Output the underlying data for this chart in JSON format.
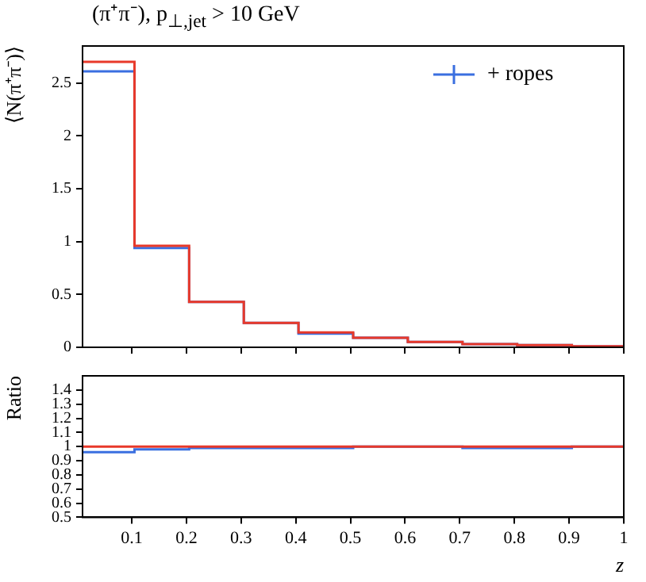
{
  "chart_data": [
    {
      "type": "histogram",
      "title": "(π⁺π⁻), p$_{⊥,jet}$ > 10 GeV",
      "ylabel": "⟨N(π⁺π⁻)⟩",
      "bins": [
        0.01,
        0.105,
        0.205,
        0.305,
        0.405,
        0.505,
        0.605,
        0.705,
        0.805,
        0.905,
        1.0
      ],
      "series": [
        {
          "color": "#e8392a",
          "values": [
            2.7,
            0.96,
            0.43,
            0.23,
            0.14,
            0.09,
            0.05,
            0.03,
            0.02,
            0.01
          ]
        },
        {
          "name": "+ ropes",
          "color": "#3a6fe0",
          "values": [
            2.61,
            0.94,
            0.43,
            0.23,
            0.13,
            0.09,
            0.05,
            0.03,
            0.02,
            0.01
          ]
        }
      ],
      "xlim": [
        0.01,
        1
      ],
      "xticks": [
        0.1,
        0.2,
        0.3,
        0.4,
        0.5,
        0.6,
        0.7,
        0.8,
        0.9,
        1
      ],
      "ylim": [
        0,
        2.85
      ],
      "yticks": [
        0,
        0.5,
        1,
        1.5,
        2,
        2.5
      ],
      "tick_labels": "y",
      "grid": false,
      "legend": "top right"
    },
    {
      "type": "histogram",
      "xlabel": "z",
      "ylabel": "Ratio",
      "bins": [
        0.01,
        0.105,
        0.205,
        0.305,
        0.405,
        0.505,
        0.605,
        0.705,
        0.805,
        0.905,
        1.0
      ],
      "series": [
        {
          "color": "#e8392a",
          "values": [
            1,
            1,
            1,
            1,
            1,
            1,
            1,
            1,
            1,
            1
          ]
        },
        {
          "color": "#3a6fe0",
          "values": [
            0.96,
            0.98,
            0.99,
            0.99,
            0.99,
            1,
            1,
            0.99,
            0.99,
            1
          ]
        }
      ],
      "xlim": [
        0.01,
        1
      ],
      "xticks": [
        0.1,
        0.2,
        0.3,
        0.4,
        0.5,
        0.6,
        0.7,
        0.8,
        0.9,
        1
      ],
      "ylim": [
        0.5,
        1.5
      ],
      "yticks": [
        0.5,
        0.6,
        0.7,
        0.8,
        0.9,
        1,
        1.1,
        1.2,
        1.3,
        1.4
      ],
      "grid": false
    }
  ]
}
